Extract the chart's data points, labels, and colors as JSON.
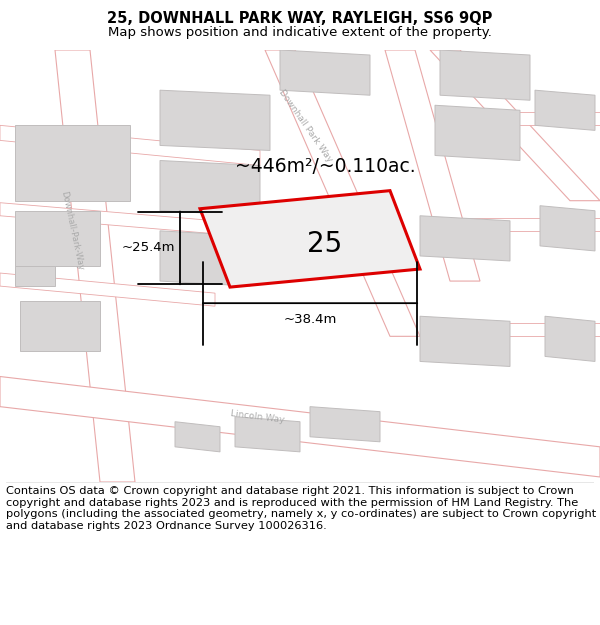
{
  "title_line1": "25, DOWNHALL PARK WAY, RAYLEIGH, SS6 9QP",
  "title_line2": "Map shows position and indicative extent of the property.",
  "footer_text": "Contains OS data © Crown copyright and database right 2021. This information is subject to Crown copyright and database rights 2023 and is reproduced with the permission of HM Land Registry. The polygons (including the associated geometry, namely x, y co-ordinates) are subject to Crown copyright and database rights 2023 Ordnance Survey 100026316.",
  "map_bg": "#f7f6f6",
  "road_outline_color": "#e8a8a8",
  "building_fill": "#d8d6d6",
  "building_edge": "#c0bdbd",
  "plot_fill": "#f0efef",
  "plot_edge": "#dd0000",
  "annotation_area": "~446m²/~0.110ac.",
  "annotation_width": "~38.4m",
  "annotation_height": "~25.4m",
  "plot_label": "25",
  "road_label_color": "#aaaaaa",
  "dim_line_color": "#000000"
}
